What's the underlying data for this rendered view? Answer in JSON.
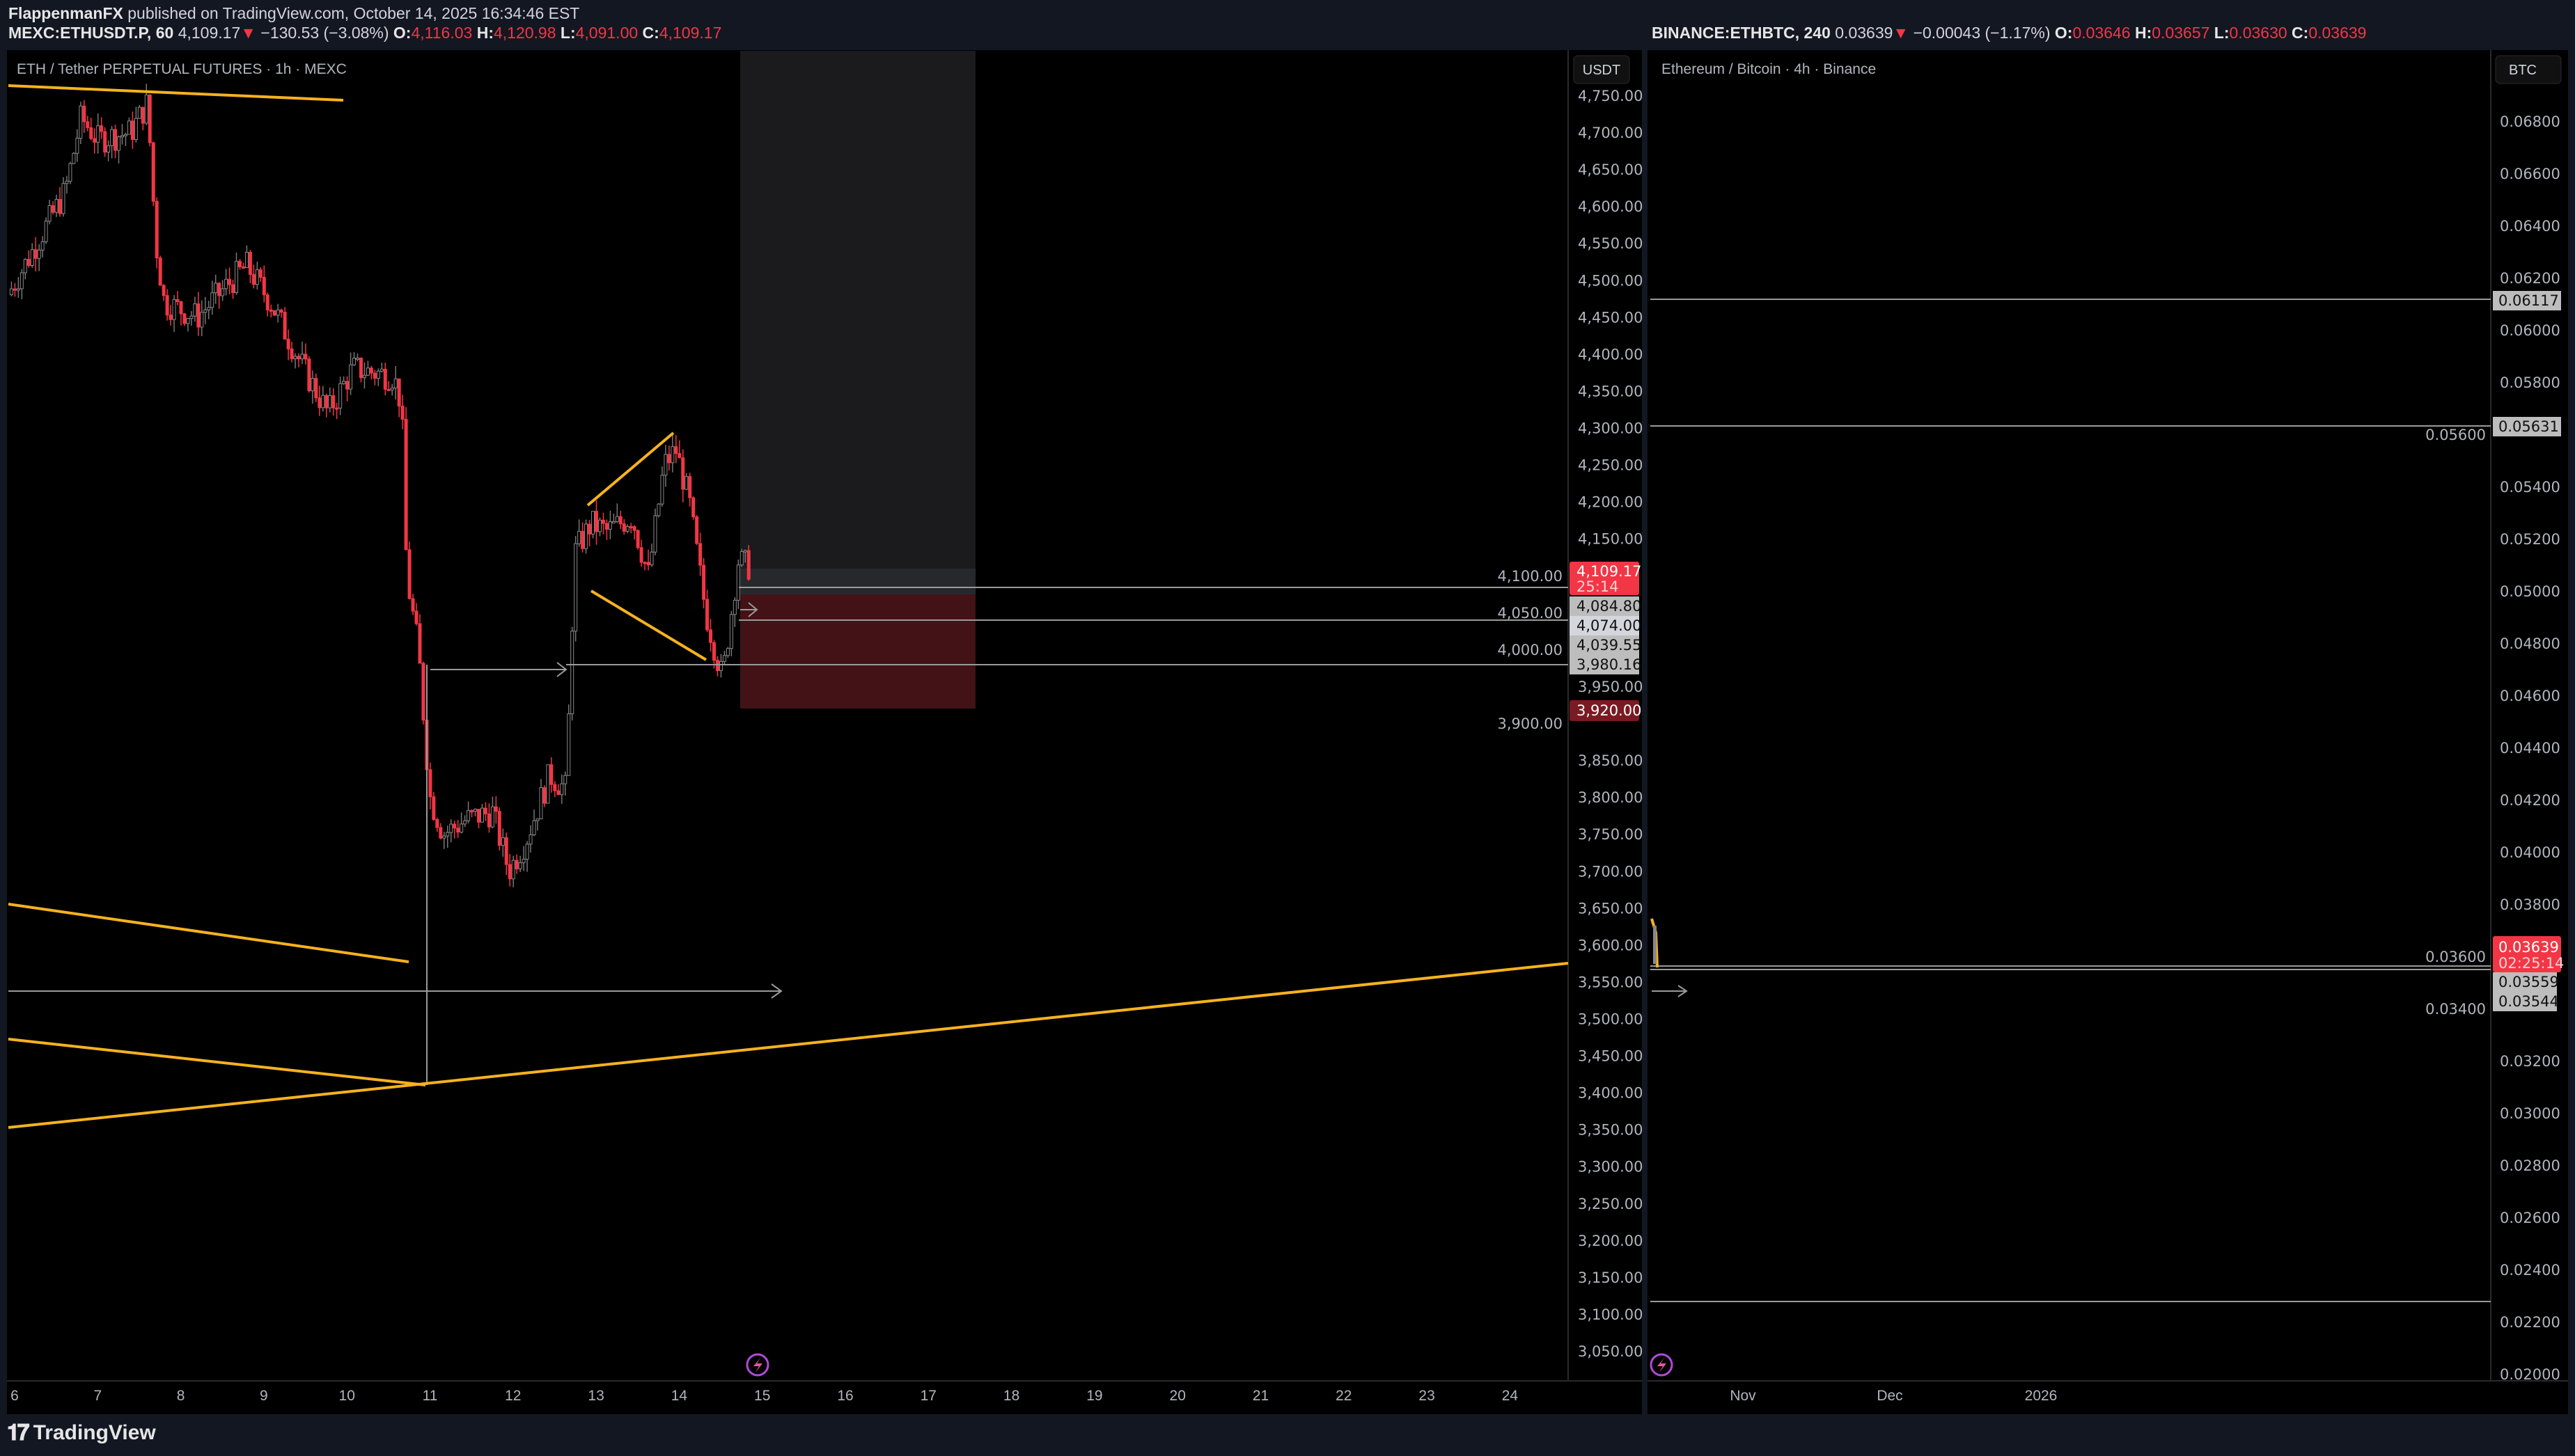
{
  "header": {
    "author": "FlappenmanFX",
    "published": "published on TradingView.com, October 14, 2025 16:34:46 EST",
    "left_symbol": "MEXC:ETHUSDT.P, 60",
    "left_last": "4,109.17",
    "left_change": "−130.53 (−3.08%)",
    "left_o": "4,116.03",
    "left_h": "4,120.98",
    "left_l": "4,091.00",
    "left_c": "4,109.17",
    "right_symbol": "BINANCE:ETHBTC, 240",
    "right_last": "0.03639",
    "right_change": "−0.00043 (−1.17%)",
    "right_o": "0.03646",
    "right_h": "0.03657",
    "right_l": "0.03630",
    "right_c": "0.03639",
    "o_label": "O:",
    "h_label": "H:",
    "l_label": "L:",
    "c_label": "C:"
  },
  "left_chart": {
    "title": "ETH / Tether PERPETUAL FUTURES · 1h · MEXC",
    "currency": "USDT",
    "badges": {
      "last": "4,109.17",
      "countdown": "25:14",
      "b1": "4,084.80",
      "b2": "4,074.00",
      "b3": "4,039.55",
      "b4": "3,980.16",
      "stop": "3,920.00"
    }
  },
  "right_chart": {
    "title": "Ethereum / Bitcoin · 4h · Binance",
    "currency": "BTC",
    "badges": {
      "l1": "0.06117",
      "l2": "0.05631",
      "last": "0.03639",
      "countdown": "02:25:14",
      "b1": "0.03559",
      "b2": "0.03544"
    }
  },
  "footer": {
    "brand": "TradingView"
  },
  "colors": {
    "down": "#f23645",
    "up": "#888888",
    "drawing": "#f7b21e",
    "bg": "#000000",
    "chrome": "#131722"
  },
  "chart_data": [
    {
      "type": "candlestick",
      "title": "ETH / Tether PERPETUAL FUTURES · 1h · MEXC",
      "ylim": [
        3025,
        4775
      ],
      "yticks": [
        4750,
        4700,
        4650,
        4600,
        4550,
        4500,
        4450,
        4400,
        4350,
        4300,
        4250,
        4200,
        4150,
        4100,
        4050,
        4000,
        3950,
        3900,
        3850,
        3800,
        3750,
        3700,
        3650,
        3600,
        3550,
        3500,
        3450,
        3400,
        3350,
        3300,
        3250,
        3200,
        3150,
        3100,
        3050
      ],
      "xticks": [
        "6",
        "7",
        "8",
        "9",
        "10",
        "11",
        "12",
        "13",
        "14",
        "15",
        "16",
        "17",
        "18",
        "19",
        "20",
        "21",
        "22",
        "23",
        "24"
      ],
      "xticks_days": [
        6,
        7,
        8,
        9,
        10,
        11,
        12,
        13,
        14,
        15,
        16,
        17,
        18,
        19,
        20,
        21,
        22,
        23,
        24
      ],
      "price_path": [
        [
          5.92,
          4480
        ],
        [
          6.12,
          4520
        ],
        [
          6.61,
          4620
        ],
        [
          6.8,
          4720
        ],
        [
          7.0,
          4690
        ],
        [
          7.4,
          4700
        ],
        [
          7.6,
          4740
        ],
        [
          7.7,
          4550
        ],
        [
          7.8,
          4470
        ],
        [
          8.2,
          4450
        ],
        [
          8.79,
          4520
        ],
        [
          9.08,
          4470
        ],
        [
          9.48,
          4380
        ],
        [
          9.77,
          4320
        ],
        [
          10.07,
          4380
        ],
        [
          10.56,
          4370
        ],
        [
          10.66,
          4330
        ],
        [
          10.72,
          4100
        ],
        [
          10.86,
          4000
        ],
        [
          11.0,
          3800
        ],
        [
          11.16,
          3750
        ],
        [
          11.45,
          3770
        ],
        [
          11.75,
          3780
        ],
        [
          11.95,
          3700
        ],
        [
          12.15,
          3740
        ],
        [
          12.44,
          3830
        ],
        [
          12.64,
          3810
        ],
        [
          12.74,
          4130
        ],
        [
          12.94,
          4170
        ],
        [
          13.13,
          4160
        ],
        [
          13.43,
          4180
        ],
        [
          13.63,
          4100
        ],
        [
          13.82,
          4250
        ],
        [
          13.96,
          4270
        ],
        [
          14.12,
          4200
        ],
        [
          14.32,
          4050
        ],
        [
          14.52,
          3960
        ],
        [
          14.71,
          4120
        ],
        [
          14.87,
          4110
        ]
      ]
    },
    {
      "type": "line",
      "title": "Ethereum / Bitcoin · 4h · Binance",
      "ylim": [
        0.0195,
        0.0695
      ],
      "yticks": [
        "0.06800",
        "0.06600",
        "0.06400",
        "0.06200",
        "0.06000",
        "0.05800",
        "0.05600",
        "0.05400",
        "0.05200",
        "0.05000",
        "0.04800",
        "0.04600",
        "0.04400",
        "0.04200",
        "0.04000",
        "0.03800",
        "0.03600",
        "0.03400",
        "0.03200",
        "0.03000",
        "0.02800",
        "0.02600",
        "0.02400",
        "0.02200",
        "0.02000"
      ],
      "xticks": [
        "Nov",
        "Dec",
        "2026"
      ]
    }
  ]
}
